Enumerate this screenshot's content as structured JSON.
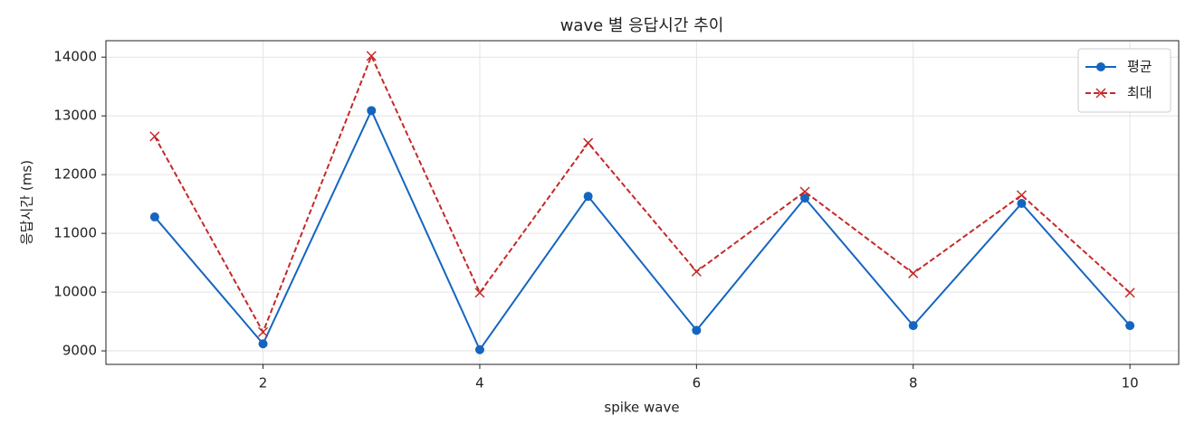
{
  "chart_data": {
    "type": "line",
    "title": "wave 별 응답시간 추이",
    "xlabel": "spike wave",
    "ylabel": "응답시간 (ms)",
    "x": [
      1,
      2,
      3,
      4,
      5,
      6,
      7,
      8,
      9,
      10
    ],
    "series": [
      {
        "name": "평균",
        "color": "#1565c0",
        "marker": "o",
        "linestyle": "solid",
        "values": [
          11280,
          9120,
          13090,
          9020,
          11630,
          9350,
          11600,
          9430,
          11510,
          9430
        ]
      },
      {
        "name": "최대",
        "color": "#c62828",
        "marker": "x",
        "linestyle": "dashed",
        "values": [
          12650,
          9320,
          14020,
          9990,
          12540,
          10350,
          11710,
          10320,
          11650,
          9990
        ]
      }
    ],
    "xlim": [
      0.55,
      10.45
    ],
    "ylim": [
      8770,
      14280
    ],
    "xticks": [
      2,
      4,
      6,
      8,
      10
    ],
    "yticks": [
      9000,
      10000,
      11000,
      12000,
      13000,
      14000
    ],
    "grid": true,
    "legend": "upper right"
  }
}
